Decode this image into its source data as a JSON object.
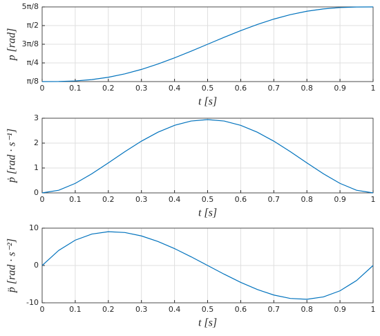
{
  "chart_data": [
    {
      "type": "line",
      "xlabel": "t [s]",
      "ylabel": "p [rad]",
      "color": "#0072bd",
      "grid": true,
      "x": [
        0,
        0.05,
        0.1,
        0.15,
        0.2,
        0.25,
        0.3,
        0.35,
        0.4,
        0.45,
        0.5,
        0.55,
        0.6,
        0.65,
        0.7,
        0.75,
        0.8,
        0.85,
        0.9,
        0.95,
        1
      ],
      "values": [
        0.3927,
        0.3945,
        0.4061,
        0.4345,
        0.4837,
        0.5553,
        0.6489,
        0.7621,
        0.8913,
        1.0318,
        1.1781,
        1.3244,
        1.4649,
        1.5941,
        1.7073,
        1.8009,
        1.8725,
        1.9217,
        1.9501,
        1.9617,
        1.9635
      ],
      "xlim": [
        0,
        1
      ],
      "xticks": [
        0,
        0.1,
        0.2,
        0.3,
        0.4,
        0.5,
        0.6,
        0.7,
        0.8,
        0.9,
        1
      ],
      "ylim": [
        0.3927,
        1.9635
      ],
      "yticks": [
        {
          "value": 0.3927,
          "label": "π/8"
        },
        {
          "value": 0.7854,
          "label": "π/4"
        },
        {
          "value": 1.1781,
          "label": "3π/8"
        },
        {
          "value": 1.5708,
          "label": "π/2"
        },
        {
          "value": 1.9635,
          "label": "5π/8"
        }
      ]
    },
    {
      "type": "line",
      "xlabel": "t [s]",
      "ylabel": "ṗ [rad · s⁻¹]",
      "color": "#0072bd",
      "grid": true,
      "x": [
        0,
        0.05,
        0.1,
        0.15,
        0.2,
        0.25,
        0.3,
        0.35,
        0.4,
        0.45,
        0.5,
        0.55,
        0.6,
        0.65,
        0.7,
        0.75,
        0.8,
        0.85,
        0.9,
        0.95,
        1
      ],
      "values": [
        0,
        0.1063,
        0.3817,
        0.7661,
        1.2064,
        1.6567,
        2.0782,
        2.439,
        2.7143,
        2.8867,
        2.9452,
        2.8867,
        2.7143,
        2.439,
        2.0782,
        1.6567,
        1.2064,
        0.7661,
        0.3817,
        0.1063,
        0
      ],
      "xlim": [
        0,
        1
      ],
      "xticks": [
        0,
        0.1,
        0.2,
        0.3,
        0.4,
        0.5,
        0.6,
        0.7,
        0.8,
        0.9,
        1
      ],
      "ylim": [
        0,
        3
      ],
      "yticks": [
        0,
        1,
        2,
        3
      ]
    },
    {
      "type": "line",
      "xlabel": "t [s]",
      "ylabel": "p̈ [rad · s⁻²]",
      "color": "#0072bd",
      "grid": true,
      "x": [
        0,
        0.05,
        0.1,
        0.15,
        0.2,
        0.25,
        0.3,
        0.35,
        0.4,
        0.45,
        0.5,
        0.55,
        0.6,
        0.65,
        0.7,
        0.75,
        0.8,
        0.85,
        0.9,
        0.95,
        1
      ],
      "values": [
        0,
        4.0291,
        6.7859,
        8.4116,
        9.0478,
        8.8358,
        7.9168,
        6.4324,
        4.5239,
        2.3326,
        0,
        -2.3326,
        -4.5239,
        -6.4324,
        -7.9168,
        -8.8358,
        -9.0478,
        -8.4116,
        -6.7859,
        -4.0291,
        0
      ],
      "xlim": [
        0,
        1
      ],
      "xticks": [
        0,
        0.1,
        0.2,
        0.3,
        0.4,
        0.5,
        0.6,
        0.7,
        0.8,
        0.9,
        1
      ],
      "ylim": [
        -10,
        10
      ],
      "yticks": [
        -10,
        0,
        10
      ]
    }
  ]
}
